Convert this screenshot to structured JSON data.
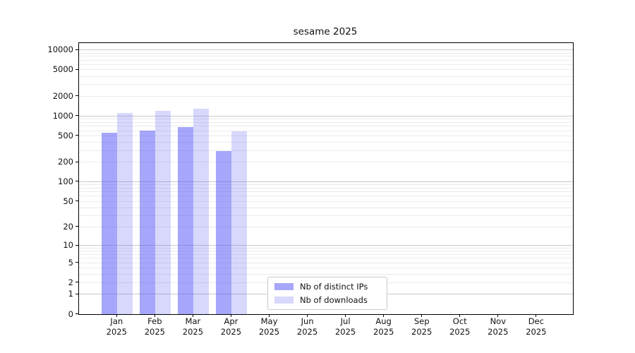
{
  "chart_data": {
    "type": "bar",
    "title": "sesame 2025",
    "year": "2025",
    "categories": [
      "Jan",
      "Feb",
      "Mar",
      "Apr",
      "May",
      "Jun",
      "Jul",
      "Aug",
      "Sep",
      "Oct",
      "Nov",
      "Dec"
    ],
    "series": [
      {
        "name": "Nb of distinct IPs",
        "color_key": "ips",
        "values": [
          560,
          600,
          680,
          295,
          null,
          null,
          null,
          null,
          null,
          null,
          null,
          null
        ]
      },
      {
        "name": "Nb of downloads",
        "color_key": "downloads",
        "values": [
          1120,
          1200,
          1300,
          580,
          null,
          null,
          null,
          null,
          null,
          null,
          null,
          null
        ]
      }
    ],
    "xlabel": "",
    "ylabel": "",
    "y_scale": "log10(value+1)",
    "y_ticks": [
      10000,
      5000,
      2000,
      1000,
      500,
      200,
      100,
      50,
      20,
      10,
      5,
      2,
      1,
      0
    ],
    "ylim": [
      0,
      12800
    ],
    "grid": "on",
    "legend_position": "lower center"
  },
  "colors": {
    "bar_ips": "rgba(85,85,245,0.52)",
    "bar_downloads": "rgba(85,85,245,0.23)",
    "grid_major": "#c9c9c9",
    "grid_minor": "#ebebeb",
    "axis_line": "#000000",
    "text": "#111111",
    "legend_border": "#c9c9c9",
    "legend_bg": "#ffffff"
  }
}
